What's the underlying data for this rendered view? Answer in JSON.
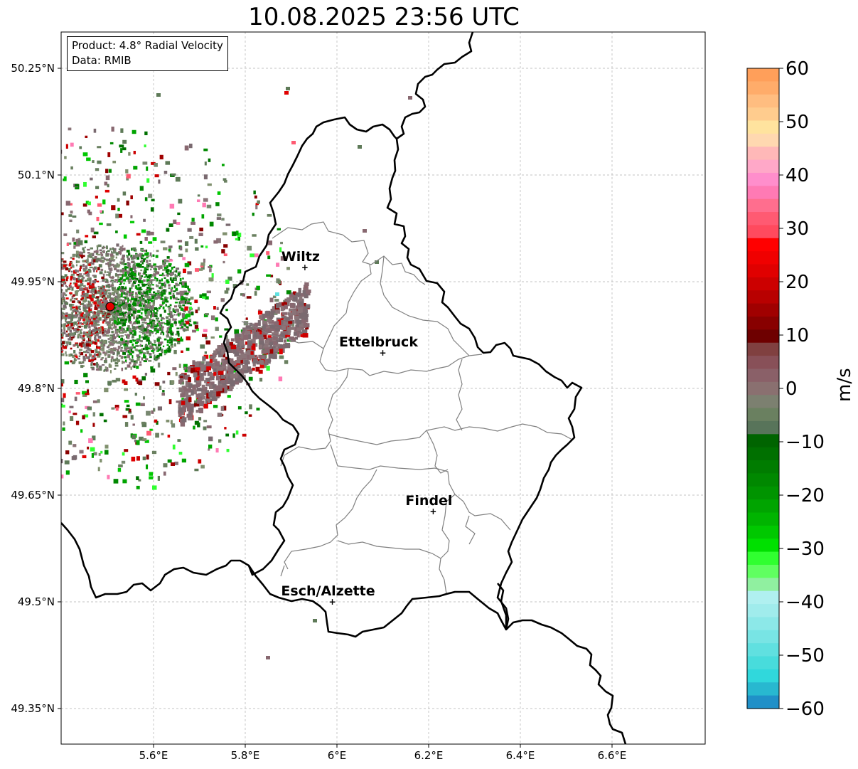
{
  "title": "10.08.2025 23:56 UTC",
  "info": {
    "product": "Product: 4.8° Radial Velocity",
    "data_source": "Data: RMIB"
  },
  "colorbar": {
    "unit": "m/s",
    "min": -60,
    "max": 60,
    "ticks": [
      60,
      50,
      40,
      30,
      20,
      10,
      0,
      -10,
      -20,
      -30,
      -40,
      -50,
      -60
    ],
    "tick_labels": [
      "60",
      "50",
      "40",
      "30",
      "20",
      "10",
      "0",
      "−10",
      "−20",
      "−30",
      "−40",
      "−50",
      "−60"
    ],
    "colors": [
      "#ff9f5a",
      "#ffac6a",
      "#ffbd80",
      "#ffcc8e",
      "#ffe39e",
      "#ffd8b0",
      "#ffb8b8",
      "#ffa8c8",
      "#ff8ecc",
      "#ff7ab4",
      "#ff6e8e",
      "#ff5a72",
      "#ff4a5e",
      "#ff0000",
      "#f00000",
      "#e00000",
      "#cc0000",
      "#b80000",
      "#a00000",
      "#880000",
      "#6e0000",
      "#804040",
      "#885058",
      "#8a6068",
      "#8a7070",
      "#7c8070",
      "#6a8060",
      "#58745a",
      "#006400",
      "#007000",
      "#007c00",
      "#008800",
      "#009400",
      "#00a400",
      "#00b400",
      "#00c800",
      "#00e000",
      "#30ff30",
      "#60ff60",
      "#90f0a0",
      "#b0f0f0",
      "#a0ecec",
      "#8ce8e8",
      "#78e4e4",
      "#60e0e0",
      "#48dcdc",
      "#30d8dc",
      "#28b8d0",
      "#2090c8"
    ]
  },
  "map_axes": {
    "lon_range": [
      5.4,
      6.8
    ],
    "lat_range": [
      49.3,
      50.3
    ],
    "x_ticks": [
      5.6,
      5.8,
      6.0,
      6.2,
      6.4,
      6.6
    ],
    "x_tick_labels": [
      "5.6°E",
      "5.8°E",
      "6°E",
      "6.2°E",
      "6.4°E",
      "6.6°E"
    ],
    "y_ticks": [
      50.25,
      50.1,
      49.95,
      49.8,
      49.65,
      49.5,
      49.35
    ],
    "y_tick_labels": [
      "50.25°N",
      "50.1°N",
      "49.95°N",
      "49.8°N",
      "49.65°N",
      "49.5°N",
      "49.35°N"
    ],
    "grid": true
  },
  "cities": [
    {
      "name": "Wiltz",
      "lon": 5.93,
      "lat": 49.97
    },
    {
      "name": "Ettelbruck",
      "lon": 6.1,
      "lat": 49.85
    },
    {
      "name": "Findel",
      "lon": 6.21,
      "lat": 49.627
    },
    {
      "name": "Esch/Alzette",
      "lon": 5.99,
      "lat": 49.5
    }
  ],
  "radar_site": {
    "lon": 5.505,
    "lat": 49.915
  }
}
